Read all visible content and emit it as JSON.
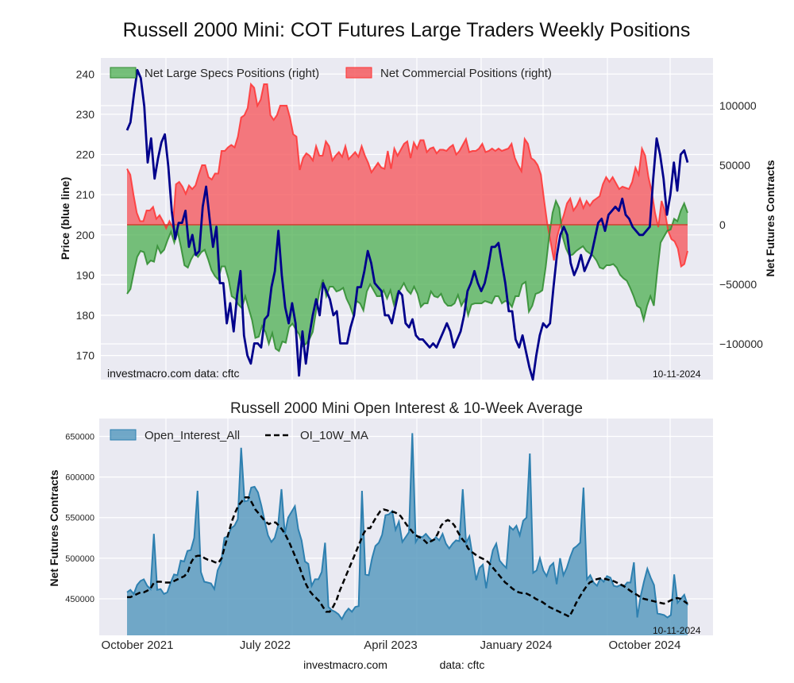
{
  "figure": {
    "title": "Russell 2000 Mini: COT Futures Large Traders Weekly Positions",
    "footer_site": "investmacro.com",
    "footer_data": "data: cftc"
  },
  "colors": {
    "price": "#00008b",
    "specs_fill": "#4caf50",
    "specs_line": "#2e8b2e",
    "comm_fill": "#f55a5f",
    "comm_line": "#ff3333",
    "oi_fill": "#5b9bc0",
    "oi_line": "#2e80b0",
    "ma": "#000000",
    "plot_bg": "#eaeaf2"
  },
  "chart_data": [
    {
      "type": "area",
      "title": "",
      "xlabel": "",
      "ylabel": "Price (blue line)",
      "ylabel_right": "Net Futures Contracts",
      "ylim": [
        164,
        244
      ],
      "ylim_right": [
        -130000,
        140000
      ],
      "yticks": [
        170,
        180,
        190,
        200,
        210,
        220,
        230,
        240
      ],
      "yticks_right": [
        -100000,
        -50000,
        0,
        50000,
        100000
      ],
      "yticks_right_labels": [
        "−100000",
        "−50000",
        "0",
        "50000",
        "100000"
      ],
      "grid": true,
      "legend_placement": "top-left",
      "legend": [
        "Net Large Specs Positions (right)",
        "Net Commercial Positions (right)"
      ],
      "watermark_left": "investmacro.com    data: cftc",
      "date_stamp": "10-11-2024",
      "x_start": "2021-10-05",
      "x_end": "2024-10-08",
      "series": [
        {
          "name": "Price",
          "axis": "left",
          "values": [
            226,
            228,
            235,
            241,
            239,
            232,
            218,
            224,
            214,
            219,
            223,
            225,
            217,
            206,
            199,
            203,
            203,
            206,
            197,
            200,
            195,
            196,
            207,
            212,
            204,
            197,
            202,
            188,
            188,
            178,
            183,
            176,
            185,
            191,
            175,
            170,
            168,
            173,
            173,
            172,
            179,
            180,
            187,
            191,
            201,
            190,
            182,
            178,
            183,
            178,
            165,
            176,
            168,
            175,
            180,
            184,
            180,
            188,
            186,
            184,
            180,
            181,
            173,
            173,
            173,
            177,
            180,
            187,
            187,
            191,
            196,
            193,
            188,
            187,
            186,
            180,
            180,
            178,
            182,
            186,
            185,
            178,
            177,
            179,
            175,
            174,
            174,
            173,
            172,
            173,
            172,
            174,
            176,
            178,
            176,
            172,
            174,
            176,
            180,
            186,
            188,
            191,
            188,
            186,
            188,
            192,
            197,
            197,
            198,
            193,
            188,
            181,
            181,
            174,
            172,
            175,
            171,
            167,
            164,
            170,
            175,
            178,
            177,
            178,
            187,
            195,
            200,
            202,
            200,
            193,
            190,
            192,
            195,
            191,
            193,
            195,
            199,
            203,
            204,
            201,
            205,
            206,
            207,
            206,
            209,
            205,
            204,
            202,
            201,
            200,
            200,
            201,
            202,
            214,
            224,
            220,
            214,
            205,
            210,
            218,
            211,
            220,
            221,
            218
          ]
        },
        {
          "name": "Net Large Specs Positions (right)",
          "axis": "right",
          "values": [
            -58000,
            -54000,
            -40000,
            -27000,
            -22000,
            -23000,
            -33000,
            -30000,
            -31000,
            -18000,
            -24000,
            -21000,
            -13000,
            -6000,
            -15000,
            -6000,
            -19000,
            -34000,
            -36000,
            -29000,
            -24000,
            -27000,
            -23000,
            -21000,
            -29000,
            -38000,
            -43000,
            -46000,
            -35000,
            -35000,
            -45000,
            -60000,
            -62000,
            -67000,
            -70000,
            -60000,
            -70000,
            -80000,
            -95000,
            -94000,
            -85000,
            -90000,
            -100000,
            -91000,
            -104000,
            -106000,
            -98000,
            -99000,
            -86000,
            -83000,
            -88000,
            -92000,
            -102000,
            -100000,
            -96000,
            -90000,
            -72000,
            -56000,
            -46000,
            -60000,
            -52000,
            -52000,
            -56000,
            -55000,
            -53000,
            -62000,
            -68000,
            -76000,
            -64000,
            -66000,
            -72000,
            -56000,
            -50000,
            -55000,
            -60000,
            -60000,
            -55000,
            -62000,
            -55000,
            -67000,
            -58000,
            -54000,
            -49000,
            -55000,
            -58000,
            -52000,
            -58000,
            -69000,
            -66000,
            -66000,
            -56000,
            -60000,
            -61000,
            -58000,
            -65000,
            -68000,
            -68000,
            -66000,
            -59000,
            -68000,
            -63000,
            -76000,
            -67000,
            -66000,
            -66000,
            -66000,
            -64000,
            -65000,
            -66000,
            -60000,
            -60000,
            -66000,
            -64000,
            -65000,
            -69000,
            -60000,
            -60000,
            -50000,
            -48000,
            -73000,
            -68000,
            -58000,
            -57000,
            -55000,
            -35000,
            -10000,
            10000,
            20000,
            14000,
            -10000,
            -20000,
            -26000,
            -25000,
            -22000,
            -20000,
            -18000,
            -22000,
            -24000,
            -26000,
            -30000,
            -36000,
            -37000,
            -34000,
            -34000,
            -33000,
            -36000,
            -42000,
            -45000,
            -47000,
            -53000,
            -60000,
            -68000,
            -70000,
            -80000,
            -68000,
            -60000,
            -68000,
            -40000,
            -15000,
            -10000,
            -5000,
            -4000,
            5000,
            3000,
            12000,
            18000,
            10000
          ]
        },
        {
          "name": "Net Commercial Positions (right)",
          "axis": "right",
          "values": [
            47000,
            42000,
            25000,
            10000,
            3000,
            3000,
            12000,
            12000,
            15000,
            5000,
            8000,
            3000,
            -3000,
            3000,
            -2000,
            34000,
            36000,
            32000,
            26000,
            33000,
            30000,
            33000,
            42000,
            50000,
            50000,
            40000,
            38000,
            43000,
            43000,
            62000,
            62000,
            65000,
            67000,
            65000,
            74000,
            90000,
            92000,
            98000,
            118000,
            115000,
            100000,
            105000,
            118000,
            118000,
            92000,
            88000,
            92000,
            100000,
            100000,
            100000,
            90000,
            76000,
            74000,
            46000,
            56000,
            60000,
            58000,
            54000,
            66000,
            58000,
            58000,
            70000,
            66000,
            54000,
            58000,
            61000,
            57000,
            66000,
            55000,
            58000,
            61000,
            57000,
            66000,
            58000,
            52000,
            44000,
            48000,
            52000,
            48000,
            47000,
            62000,
            47000,
            64000,
            58000,
            63000,
            68000,
            70000,
            56000,
            69000,
            64000,
            71000,
            71000,
            61000,
            64000,
            65000,
            60000,
            63000,
            63000,
            62000,
            65000,
            67000,
            59000,
            62000,
            67000,
            72000,
            61000,
            62000,
            62000,
            64000,
            68000,
            61000,
            62000,
            64000,
            62000,
            64000,
            62000,
            63000,
            64000,
            68000,
            56000,
            50000,
            45000,
            72000,
            68000,
            56000,
            54000,
            50000,
            42000,
            20000,
            0,
            -15000,
            -30000,
            -10000,
            0,
            8000,
            18000,
            22000,
            12000,
            16000,
            22000,
            14000,
            20000,
            16000,
            20000,
            22000,
            24000,
            34000,
            40000,
            36000,
            40000,
            35000,
            30000,
            32000,
            31000,
            30000,
            36000,
            48000,
            42000,
            64000,
            58000,
            40000,
            28000,
            10000,
            -2000,
            20000,
            12000,
            -5000,
            -12000,
            -14000,
            -20000,
            -35000,
            -33000,
            -22000
          ]
        }
      ]
    },
    {
      "type": "area",
      "title": "Russell 2000 Mini Open Interest & 10-Week Average",
      "xlabel": "",
      "ylabel": "Net Futures Contracts",
      "ylim": [
        405000,
        672000
      ],
      "yticks": [
        450000,
        500000,
        550000,
        600000,
        650000
      ],
      "grid": true,
      "legend_placement": "top-left",
      "legend": [
        "Open_Interest_All",
        "OI_10W_MA"
      ],
      "x_tick_labels": [
        "October 2021",
        "July 2022",
        "April 2023",
        "January 2024",
        "October 2024"
      ],
      "date_stamp": "10-11-2024",
      "series": [
        {
          "name": "Open_Interest_All",
          "values": [
            458000,
            461000,
            456000,
            467000,
            472000,
            474000,
            466000,
            462000,
            530000,
            461000,
            462000,
            456000,
            458000,
            470000,
            480000,
            479000,
            497000,
            496000,
            509000,
            510000,
            525000,
            583000,
            483000,
            471000,
            470000,
            469000,
            462000,
            485000,
            494000,
            525000,
            527000,
            537000,
            540000,
            548000,
            636000,
            570000,
            571000,
            587000,
            588000,
            581000,
            565000,
            546000,
            528000,
            520000,
            525000,
            540000,
            585000,
            530000,
            550000,
            557000,
            564000,
            536000,
            522000,
            496000,
            493000,
            466000,
            474000,
            474000,
            483000,
            519000,
            440000,
            436000,
            434000,
            431000,
            425000,
            433000,
            438000,
            434000,
            440000,
            441000,
            583000,
            480000,
            479000,
            500000,
            515000,
            519000,
            529000,
            553000,
            554000,
            558000,
            535000,
            545000,
            520000,
            526000,
            532000,
            654000,
            520000,
            527000,
            526000,
            530000,
            525000,
            521000,
            526000,
            522000,
            530000,
            518000,
            512000,
            518000,
            522000,
            521000,
            585000,
            519000,
            527000,
            501000,
            473000,
            488000,
            492000,
            463000,
            491000,
            510000,
            518000,
            497000,
            492000,
            488000,
            539000,
            535000,
            540000,
            528000,
            546000,
            550000,
            629000,
            482000,
            485000,
            500000,
            485000,
            478000,
            490000,
            494000,
            468000,
            500000,
            479000,
            488000,
            501000,
            512000,
            515000,
            519000,
            587000,
            474000,
            479000,
            470000,
            466000,
            475000,
            471000,
            478000,
            476000,
            466000,
            465000,
            467000,
            465000,
            470000,
            470000,
            495000,
            427000,
            453000,
            471000,
            487000,
            476000,
            467000,
            432000,
            431000,
            430000,
            427000,
            430000,
            480000,
            445000,
            450000,
            455000,
            442000
          ]
        },
        {
          "name": "OI_10W_MA",
          "values": [
            452000,
            452000,
            454000,
            456000,
            458000,
            458000,
            460000,
            463000,
            470000,
            471000,
            471000,
            470000,
            470000,
            470000,
            472000,
            474000,
            476000,
            478000,
            483000,
            495000,
            502000,
            503000,
            503000,
            500000,
            498000,
            497000,
            495000,
            494000,
            500000,
            515000,
            530000,
            545000,
            556000,
            565000,
            570000,
            575000,
            575000,
            568000,
            560000,
            555000,
            550000,
            545000,
            542000,
            544000,
            544000,
            540000,
            535000,
            528000,
            520000,
            510000,
            500000,
            490000,
            478000,
            468000,
            460000,
            455000,
            451000,
            447000,
            440000,
            434000,
            434000,
            440000,
            448000,
            460000,
            470000,
            480000,
            490000,
            500000,
            510000,
            520000,
            530000,
            537000,
            537000,
            545000,
            552000,
            558000,
            560000,
            559000,
            557000,
            557000,
            555000,
            552000,
            546000,
            540000,
            535000,
            530000,
            527000,
            525000,
            522000,
            518000,
            521000,
            523000,
            530000,
            540000,
            545000,
            547000,
            545000,
            540000,
            532000,
            525000,
            520000,
            512000,
            508000,
            505000,
            502000,
            500000,
            498000,
            495000,
            490000,
            485000,
            480000,
            475000,
            470000,
            467000,
            463000,
            460000,
            458000,
            457000,
            457000,
            455000,
            453000,
            450000,
            448000,
            446000,
            443000,
            440000,
            438000,
            436000,
            434000,
            432000,
            430000,
            428000,
            436000,
            445000,
            452000,
            459000,
            465000,
            470000,
            472000,
            474000,
            475000,
            475000,
            474000,
            473000,
            472000,
            470000,
            468000,
            466000,
            463000,
            460000,
            457000,
            455000,
            452000,
            450000,
            449000,
            448000,
            447000,
            446000,
            445000,
            444000,
            446000,
            448000,
            450000,
            451000,
            450000,
            447000,
            444000
          ]
        }
      ]
    }
  ]
}
